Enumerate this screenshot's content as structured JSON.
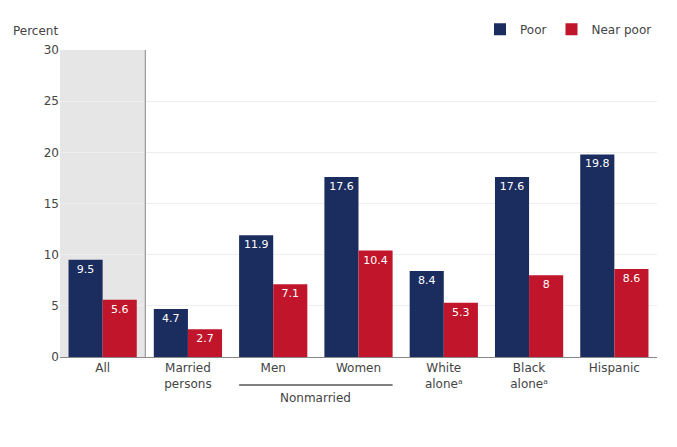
{
  "chart_data": {
    "type": "bar",
    "ylabel": "Percent",
    "categories": [
      "All",
      "Married\npersons",
      "Men",
      "Women",
      "White\naloneᵃ",
      "Black\naloneᵃ",
      "Hispanic"
    ],
    "series": [
      {
        "name": "Poor",
        "color": "#1b2d5e",
        "values": [
          9.5,
          4.7,
          11.9,
          17.6,
          8.4,
          17.6,
          19.8
        ]
      },
      {
        "name": "Near poor",
        "color": "#c0152a",
        "values": [
          5.6,
          2.7,
          7.1,
          10.4,
          5.3,
          8.0,
          8.6
        ]
      }
    ],
    "annotations": [
      {
        "text": "Nonmarried",
        "categories": [
          "Men",
          "Women"
        ]
      }
    ],
    "ylim": [
      0,
      30
    ],
    "yticks": [
      0,
      5,
      10,
      15,
      20,
      25,
      30
    ],
    "grid": true,
    "legend": "upper right",
    "data_labels": true
  }
}
